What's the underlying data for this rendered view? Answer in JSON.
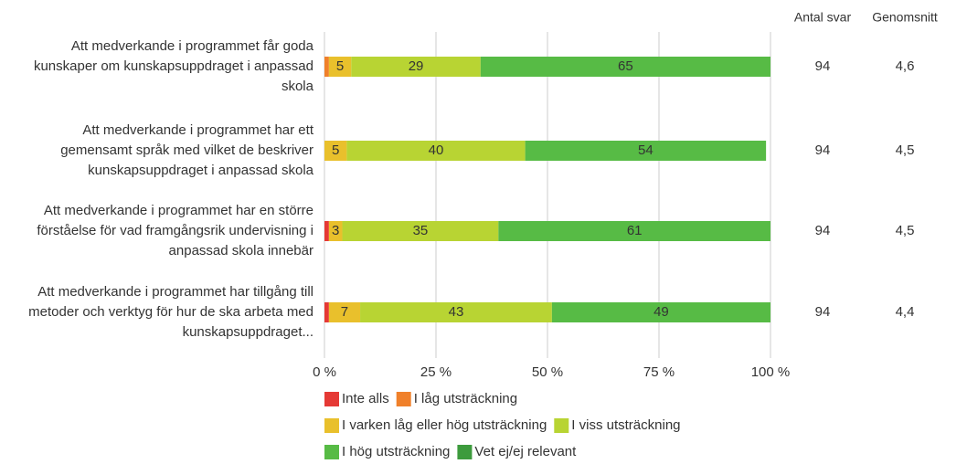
{
  "chart_data": {
    "type": "stacked_bar_horizontal",
    "categories": [
      "Att medverkande i programmet får goda kunskaper om kunskapsuppdraget i anpassad skola",
      "Att medverkande i programmet har ett gemensamt språk med vilket de beskriver kunskapsuppdraget i anpassad skola",
      "Att medverkande i programmet har en större förståelse för vad framgångsrik undervisning i anpassad skola innebär",
      "Att medverkande i programmet har tillgång till metoder och verktyg för hur de ska arbeta med kunskapsuppdraget..."
    ],
    "series": [
      {
        "name": "Inte alls",
        "color": "#e53935",
        "values": [
          0,
          0,
          1,
          1
        ]
      },
      {
        "name": "I låg utsträckning",
        "color": "#f0802a",
        "values": [
          1,
          0,
          0,
          0
        ]
      },
      {
        "name": "I varken låg eller hög utsträckning",
        "color": "#e9c02c",
        "values": [
          5,
          5,
          3,
          7
        ]
      },
      {
        "name": "I viss utsträckning",
        "color": "#b8d433",
        "values": [
          29,
          40,
          35,
          43
        ]
      },
      {
        "name": "I hög utsträckning",
        "color": "#57bb45",
        "values": [
          65,
          54,
          61,
          49
        ]
      },
      {
        "name": "Vet ej/ej relevant",
        "color": "#3d9b3d",
        "values": [
          0,
          0,
          0,
          0
        ]
      }
    ],
    "xlim": [
      0,
      100
    ],
    "xticks": [
      {
        "value": 0,
        "label": "0 %"
      },
      {
        "value": 25,
        "label": "25 %"
      },
      {
        "value": 50,
        "label": "50 %"
      },
      {
        "value": 75,
        "label": "75 %"
      },
      {
        "value": 100,
        "label": "100 %"
      }
    ],
    "grid": true,
    "columns": [
      {
        "header": "Antal svar",
        "values": [
          94,
          94,
          94,
          94
        ]
      },
      {
        "header": "Genomsnitt",
        "values": [
          "4,6",
          "4,5",
          "4,5",
          "4,4"
        ]
      }
    ]
  }
}
